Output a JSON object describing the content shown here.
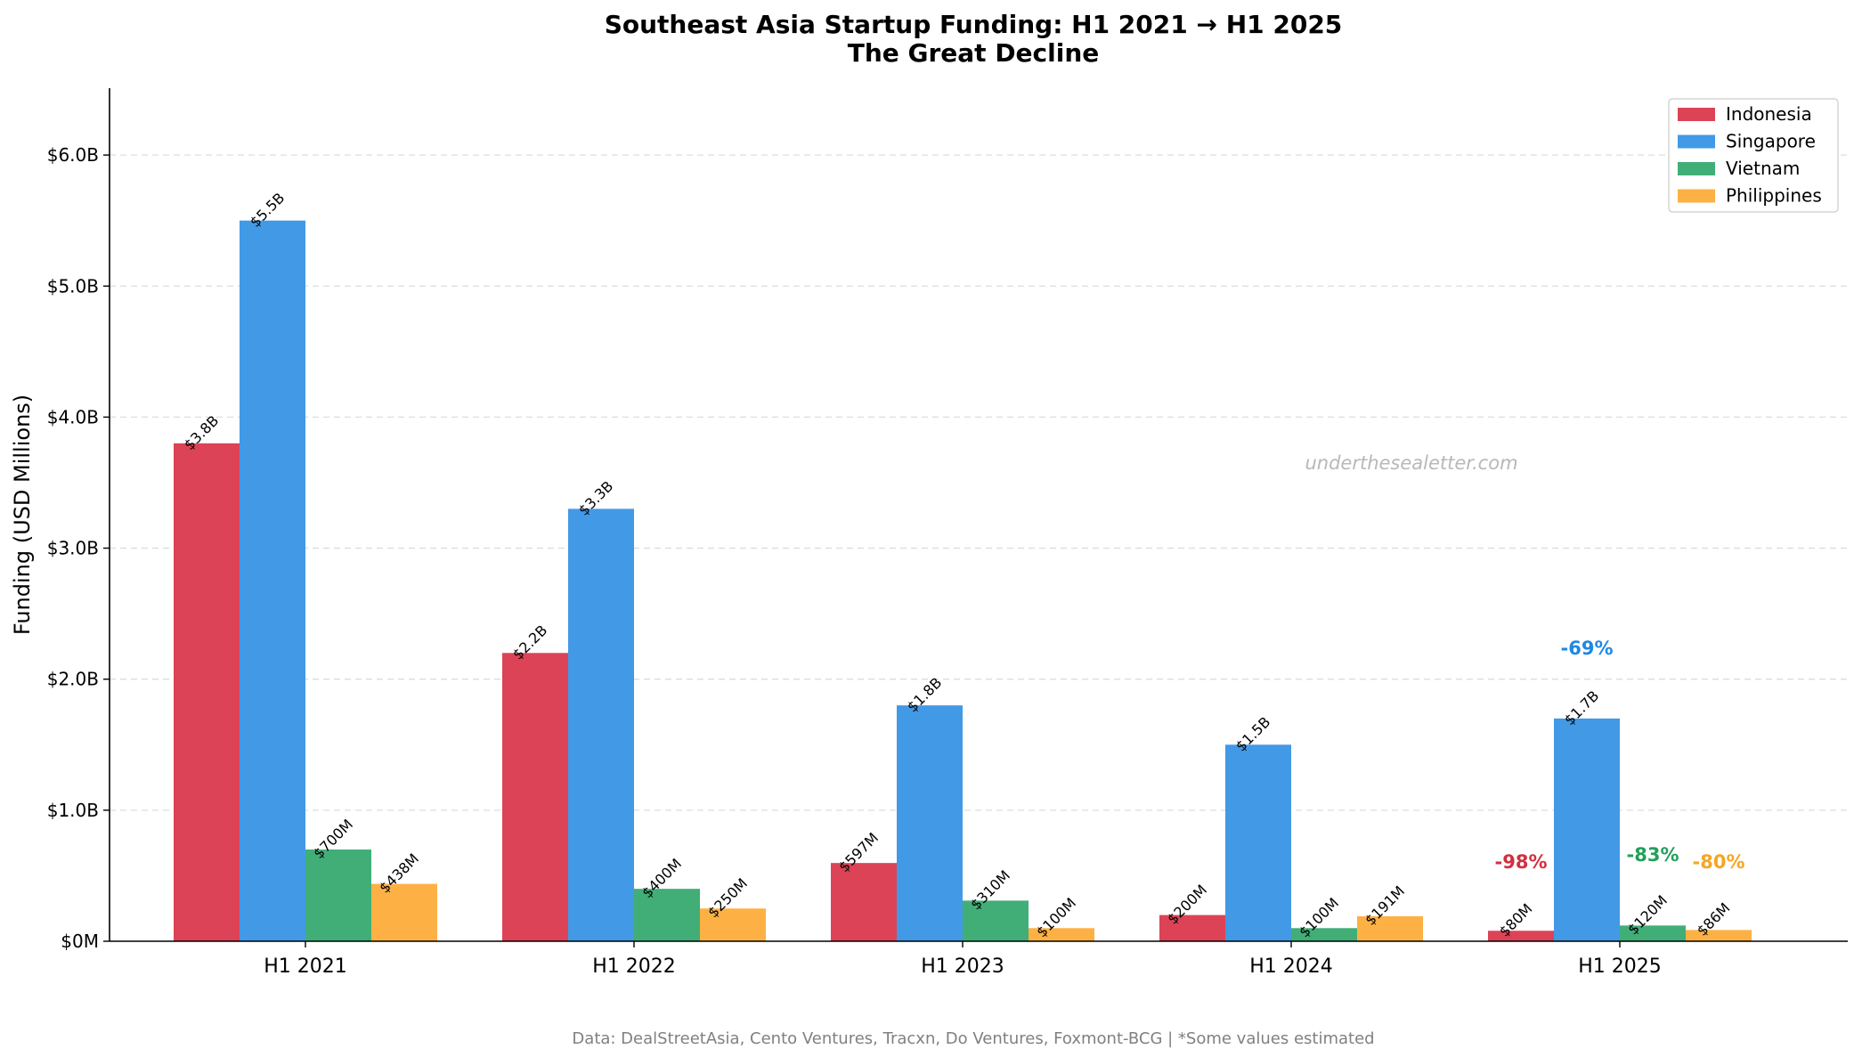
{
  "chart_data": {
    "type": "bar",
    "title": "Southeast Asia Startup Funding: H1 2021 → H1 2025",
    "subtitle": "The Great Decline",
    "xlabel": "",
    "ylabel": "Funding (USD Millions)",
    "ylim": [
      0,
      6500
    ],
    "grid": "y-dashed",
    "legend_position": "top-right",
    "categories": [
      "H1 2021",
      "H1 2022",
      "H1 2023",
      "H1 2024",
      "H1 2025"
    ],
    "y_ticks": [
      {
        "value": 0,
        "label": "$0M"
      },
      {
        "value": 1000,
        "label": "$1.0B"
      },
      {
        "value": 2000,
        "label": "$2.0B"
      },
      {
        "value": 3000,
        "label": "$3.0B"
      },
      {
        "value": 4000,
        "label": "$4.0B"
      },
      {
        "value": 5000,
        "label": "$5.0B"
      },
      {
        "value": 6000,
        "label": "$6.0B"
      }
    ],
    "series": [
      {
        "name": "Indonesia",
        "color": "#dc4356",
        "values": [
          3800,
          2200,
          597,
          200,
          80
        ],
        "labels": [
          "$3.8B",
          "$2.2B",
          "$597M",
          "$200M",
          "$80M"
        ],
        "change_label": "-98%",
        "change_color": "#d32f3f"
      },
      {
        "name": "Singapore",
        "color": "#4299e6",
        "values": [
          5500,
          3300,
          1800,
          1500,
          1700
        ],
        "labels": [
          "$5.5B",
          "$3.3B",
          "$1.8B",
          "$1.5B",
          "$1.7B"
        ],
        "change_label": "-69%",
        "change_color": "#1e88e5"
      },
      {
        "name": "Vietnam",
        "color": "#41ae77",
        "values": [
          700,
          400,
          310,
          100,
          120
        ],
        "labels": [
          "$700M",
          "$400M",
          "$310M",
          "$100M",
          "$120M"
        ],
        "change_label": "-83%",
        "change_color": "#22a05a"
      },
      {
        "name": "Philippines",
        "color": "#fdb145",
        "values": [
          438,
          250,
          100,
          191,
          86
        ],
        "labels": [
          "$438M",
          "$250M",
          "$100M",
          "$191M",
          "$86M"
        ],
        "change_label": "-80%",
        "change_color": "#f5a623"
      }
    ],
    "watermark": "underthesealetter.com",
    "footer": "Data: DealStreetAsia, Cento Ventures, Tracxn, Do Ventures, Foxmont-BCG | *Some values estimated"
  }
}
